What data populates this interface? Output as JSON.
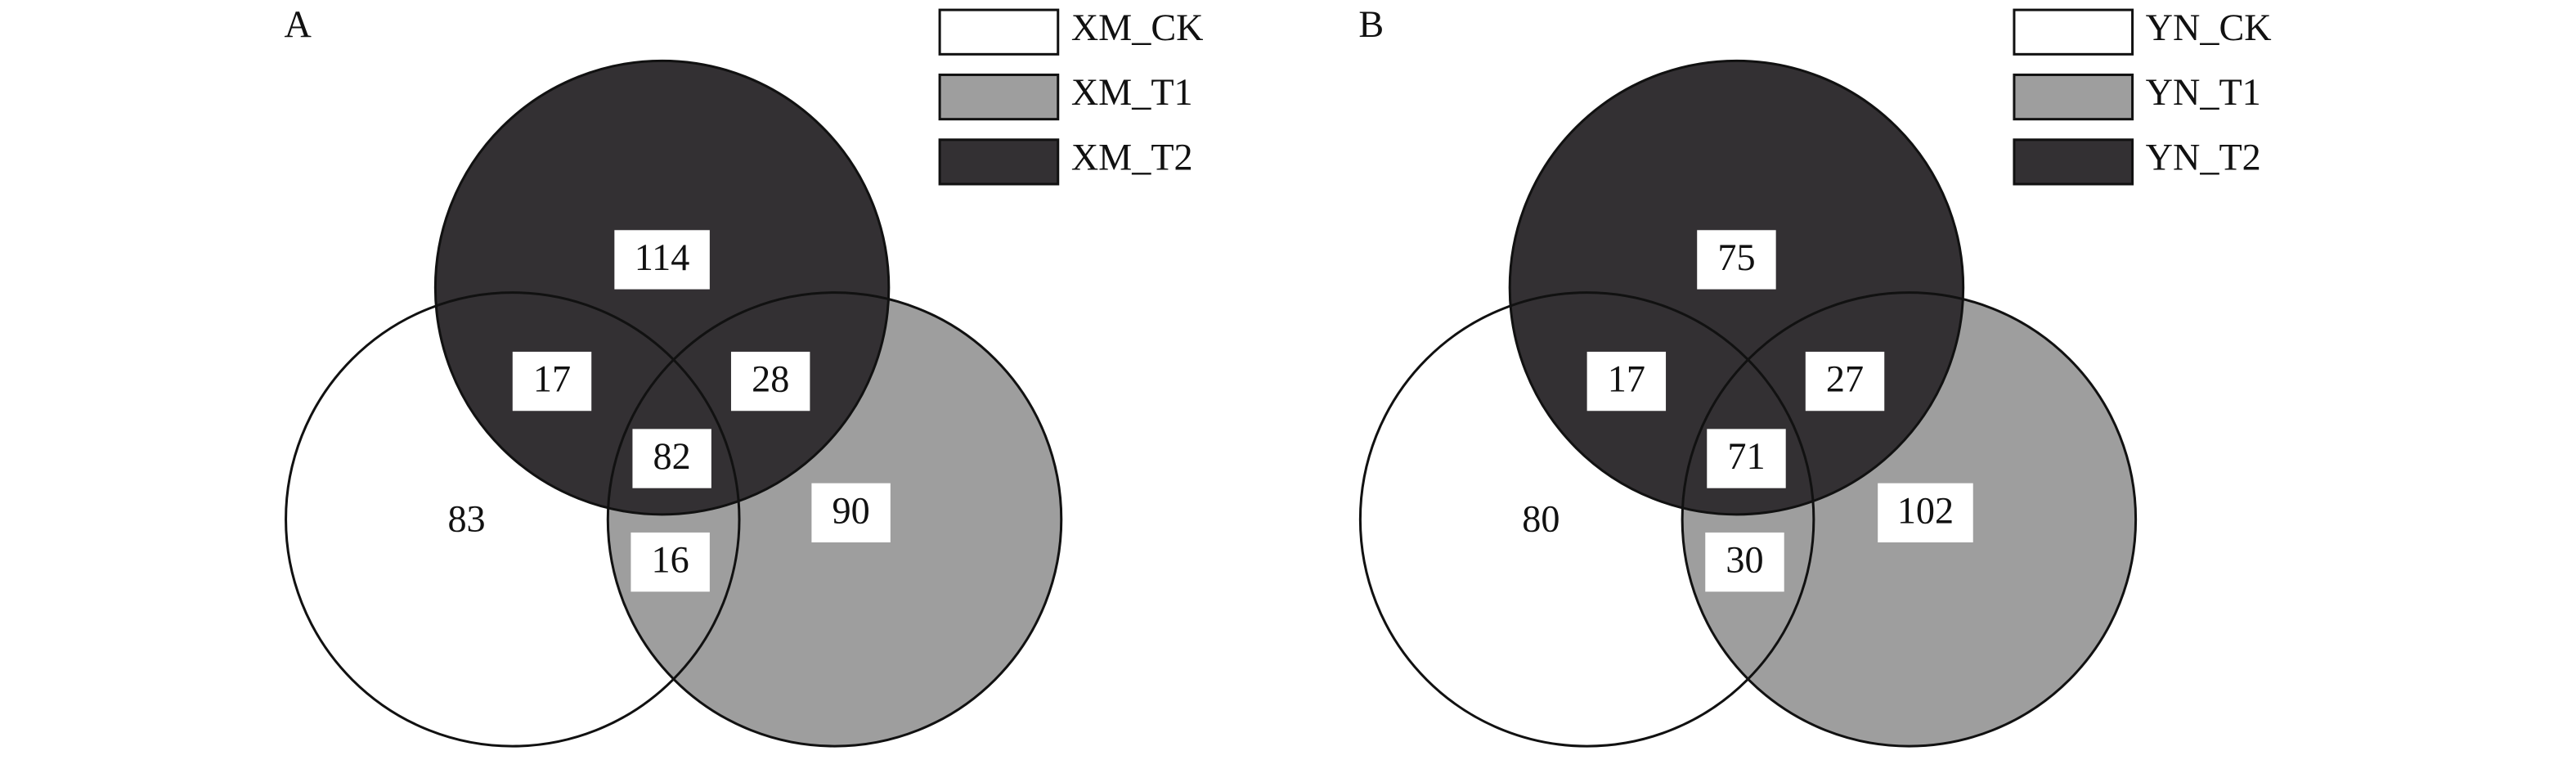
{
  "chart_data": [
    {
      "type": "venn",
      "title": "A",
      "series": [
        {
          "name": "XM_CK",
          "color": "#ffffff"
        },
        {
          "name": "XM_T1",
          "color": "#9e9e9e"
        },
        {
          "name": "XM_T2",
          "color": "#333033"
        }
      ],
      "values": [
        83,
        90,
        114,
        17,
        28,
        82,
        16
      ]
    },
    {
      "type": "venn",
      "title": "B",
      "series": [
        {
          "name": "YN_CK",
          "color": "#ffffff"
        },
        {
          "name": "YN_T1",
          "color": "#9e9e9e"
        },
        {
          "name": "YN_T2",
          "color": "#333033"
        }
      ],
      "values": [
        80,
        102,
        75,
        17,
        27,
        71,
        30
      ]
    }
  ]
}
